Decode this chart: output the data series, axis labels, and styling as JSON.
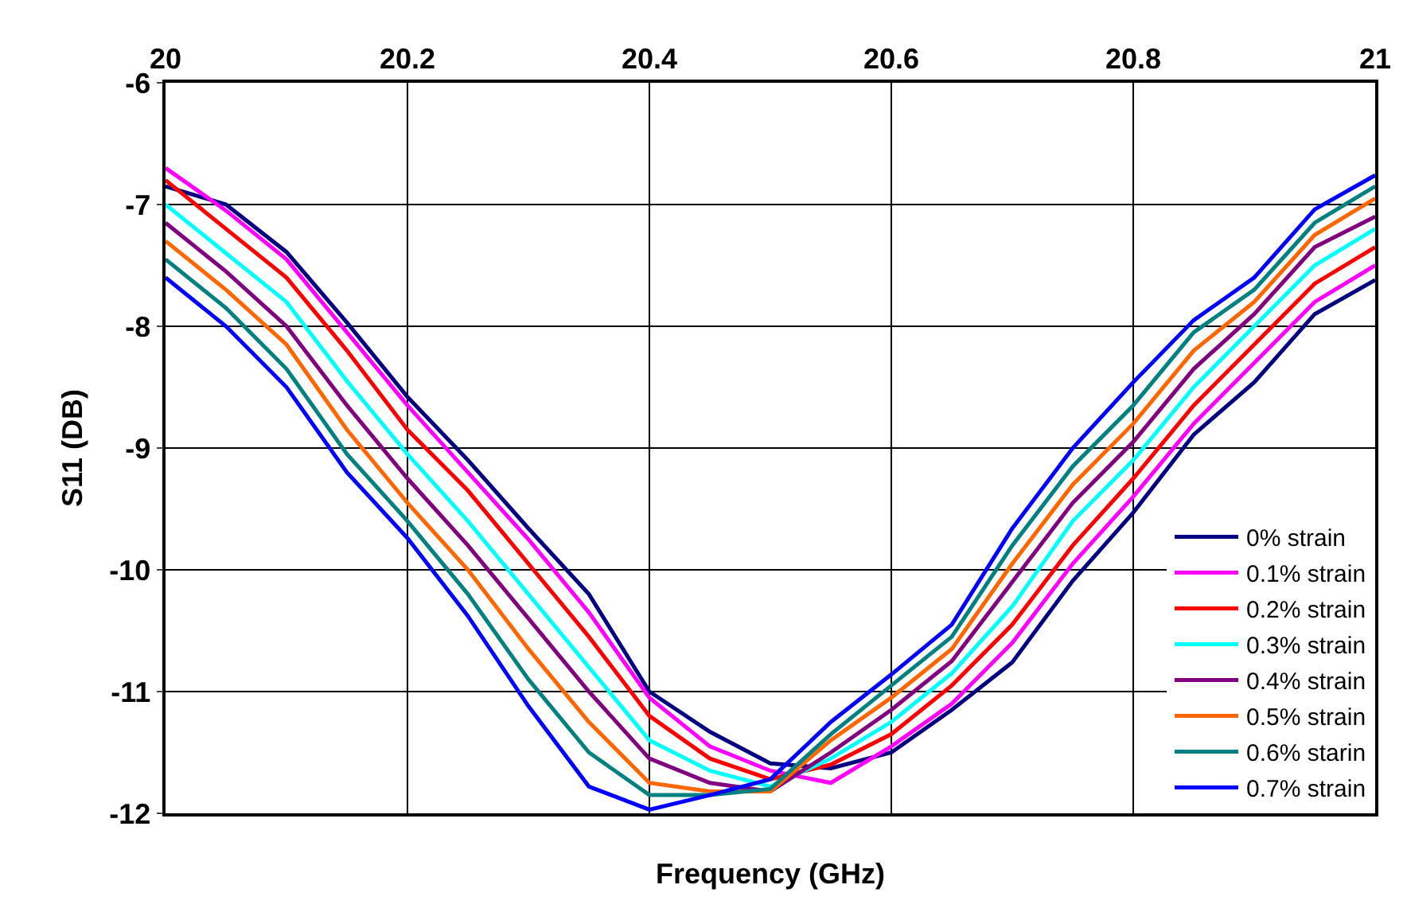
{
  "chart_data": {
    "type": "line",
    "xlabel": "Frequency (GHz)",
    "ylabel": "S11 (DB)",
    "x": [
      20,
      20.05,
      20.1,
      20.15,
      20.2,
      20.25,
      20.3,
      20.35,
      20.4,
      20.45,
      20.5,
      20.55,
      20.6,
      20.65,
      20.7,
      20.75,
      20.8,
      20.85,
      20.9,
      20.95,
      21
    ],
    "xlim": [
      20,
      21
    ],
    "xticks": [
      20,
      20.2,
      20.4,
      20.6,
      20.8,
      21
    ],
    "ylim": [
      -12,
      -6
    ],
    "yticks": [
      -12,
      -11,
      -10,
      -9,
      -8,
      -7,
      -6
    ],
    "grid": true,
    "legend": "bottom right",
    "marker": "none",
    "line_style": "solid",
    "series": [
      {
        "name": "0% strain",
        "color": "#000080",
        "values": [
          -6.85,
          -7.0,
          -7.39,
          -7.97,
          -8.58,
          -9.1,
          -9.66,
          -10.2,
          -11.0,
          -11.33,
          -11.59,
          -11.63,
          -11.5,
          -11.15,
          -10.76,
          -10.09,
          -9.53,
          -8.89,
          -8.46,
          -7.9,
          -7.62
        ]
      },
      {
        "name": "0.1% strain",
        "color": "#ff00ff",
        "values": [
          -6.7,
          -7.05,
          -7.45,
          -8.05,
          -8.65,
          -9.2,
          -9.75,
          -10.35,
          -11.05,
          -11.45,
          -11.65,
          -11.75,
          -11.45,
          -11.1,
          -10.6,
          -9.95,
          -9.4,
          -8.8,
          -8.3,
          -7.8,
          -7.5
        ]
      },
      {
        "name": "0.2% strain",
        "color": "#ff0000",
        "values": [
          -6.8,
          -7.2,
          -7.6,
          -8.2,
          -8.85,
          -9.35,
          -9.95,
          -10.55,
          -11.2,
          -11.55,
          -11.72,
          -11.6,
          -11.35,
          -10.95,
          -10.45,
          -9.8,
          -9.25,
          -8.65,
          -8.15,
          -7.65,
          -7.35
        ]
      },
      {
        "name": "0.3% strain",
        "color": "#00ffff",
        "values": [
          -7.0,
          -7.4,
          -7.8,
          -8.45,
          -9.05,
          -9.6,
          -10.2,
          -10.8,
          -11.4,
          -11.65,
          -11.78,
          -11.55,
          -11.25,
          -10.85,
          -10.3,
          -9.6,
          -9.1,
          -8.5,
          -8.0,
          -7.5,
          -7.2
        ]
      },
      {
        "name": "0.4% strain",
        "color": "#800080",
        "values": [
          -7.15,
          -7.55,
          -8.0,
          -8.65,
          -9.25,
          -9.8,
          -10.4,
          -11.0,
          -11.55,
          -11.75,
          -11.82,
          -11.5,
          -11.15,
          -10.75,
          -10.1,
          -9.45,
          -8.95,
          -8.35,
          -7.9,
          -7.35,
          -7.1
        ]
      },
      {
        "name": "0.5% strain",
        "color": "#ff6600",
        "values": [
          -7.3,
          -7.7,
          -8.15,
          -8.85,
          -9.45,
          -10.0,
          -10.65,
          -11.25,
          -11.75,
          -11.82,
          -11.82,
          -11.4,
          -11.05,
          -10.65,
          -9.95,
          -9.3,
          -8.8,
          -8.2,
          -7.8,
          -7.25,
          -6.95
        ]
      },
      {
        "name": "0.6% starin",
        "color": "#008080",
        "values": [
          -7.45,
          -7.85,
          -8.35,
          -9.05,
          -9.6,
          -10.2,
          -10.9,
          -11.5,
          -11.85,
          -11.85,
          -11.8,
          -11.35,
          -10.95,
          -10.55,
          -9.8,
          -9.15,
          -8.65,
          -8.05,
          -7.7,
          -7.15,
          -6.85
        ]
      },
      {
        "name": "0.7% strain",
        "color": "#0000ff",
        "values": [
          -7.6,
          -8.0,
          -8.5,
          -9.2,
          -9.74,
          -10.38,
          -11.12,
          -11.78,
          -11.97,
          -11.85,
          -11.72,
          -11.25,
          -10.86,
          -10.45,
          -9.66,
          -9.0,
          -8.46,
          -7.95,
          -7.6,
          -7.04,
          -6.76
        ]
      }
    ]
  }
}
